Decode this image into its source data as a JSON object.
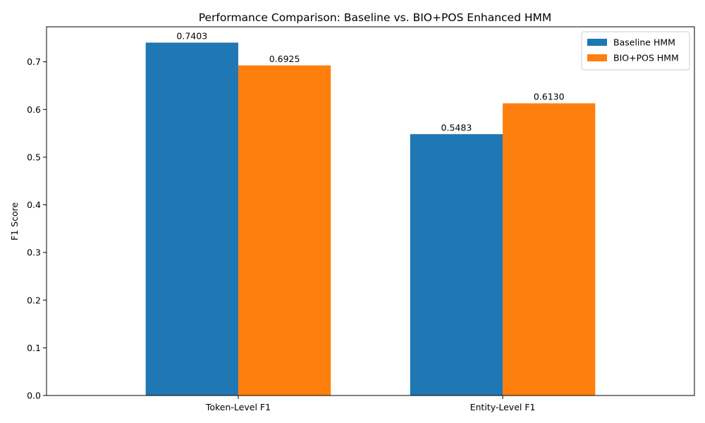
{
  "chart_data": {
    "type": "bar",
    "title": "Performance Comparison: Baseline vs. BIO+POS Enhanced HMM",
    "xlabel": "",
    "ylabel": "F1 Score",
    "categories": [
      "Token-Level F1",
      "Entity-Level F1"
    ],
    "series": [
      {
        "name": "Baseline HMM",
        "values": [
          0.7403,
          0.5483
        ],
        "labels": [
          "0.7403",
          "0.5483"
        ],
        "color": "#1f77b4"
      },
      {
        "name": "BIO+POS HMM",
        "values": [
          0.6925,
          0.613
        ],
        "labels": [
          "0.6925",
          "0.6130"
        ],
        "color": "#ff7f0e"
      }
    ],
    "ylim": [
      0,
      0.7735
    ],
    "yticks": [
      0.0,
      0.1,
      0.2,
      0.3,
      0.4,
      0.5,
      0.6,
      0.7
    ],
    "ytick_labels": [
      "0.0",
      "0.1",
      "0.2",
      "0.3",
      "0.4",
      "0.5",
      "0.6",
      "0.7"
    ],
    "grid": false,
    "legend_position": "top-right"
  }
}
